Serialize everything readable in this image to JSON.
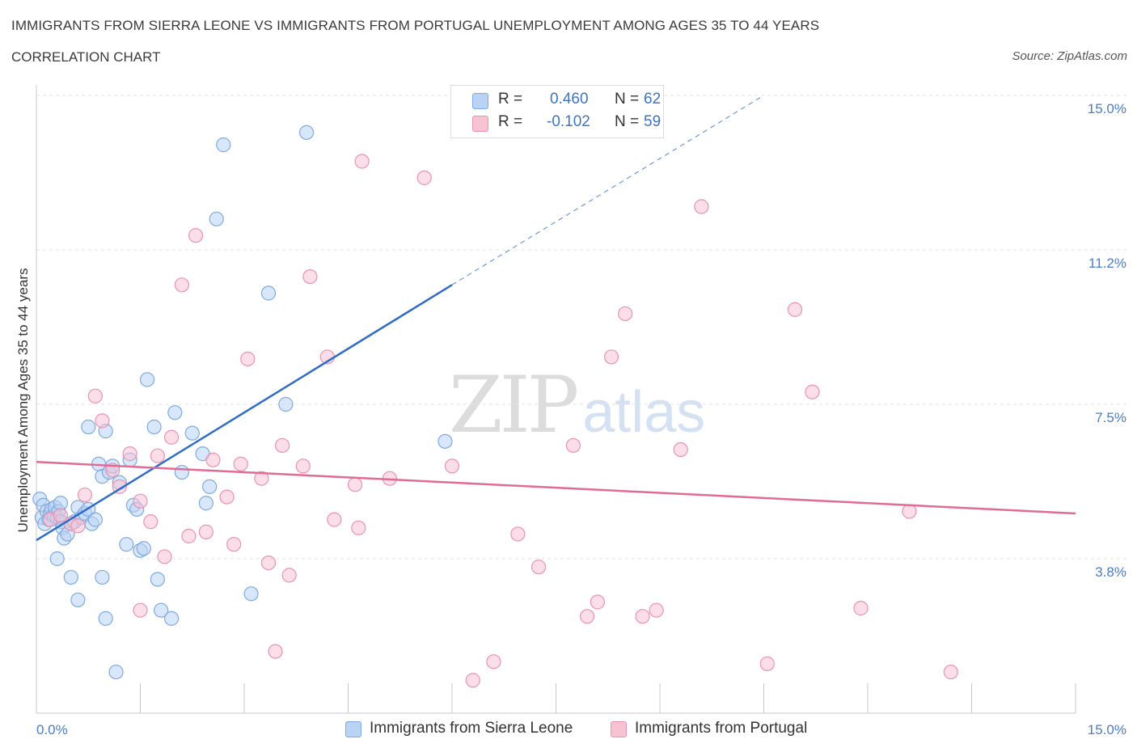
{
  "header": {
    "title": "IMMIGRANTS FROM SIERRA LEONE VS IMMIGRANTS FROM PORTUGAL UNEMPLOYMENT AMONG AGES 35 TO 44 YEARS",
    "subtitle": "CORRELATION CHART",
    "source": "Source: ZipAtlas.com"
  },
  "watermark": {
    "zip": "ZIP",
    "atlas": "atlas"
  },
  "legend": {
    "rows": [
      {
        "r_label": "R =",
        "r_value": "0.460",
        "n_label": "N =",
        "n_value": "62"
      },
      {
        "r_label": "R =",
        "r_value": "-0.102",
        "n_label": "N =",
        "n_value": "59"
      }
    ]
  },
  "colors": {
    "blue_fill": "#b9d3f5",
    "blue_stroke": "#7fa9e0",
    "blue_line": "#2e6cc7",
    "pink_fill": "#f7c3d3",
    "pink_stroke": "#e993b0",
    "pink_line": "#e06b96",
    "grid": "#e3e3e3",
    "tick_label": "#4a7cc9"
  },
  "chart_data": {
    "type": "scatter",
    "title": "IMMIGRANTS FROM SIERRA LEONE VS IMMIGRANTS FROM PORTUGAL UNEMPLOYMENT AMONG AGES 35 TO 44 YEARS",
    "subtitle": "CORRELATION CHART",
    "xlabel": "",
    "ylabel": "Unemployment Among Ages 35 to 44 years",
    "xlim": [
      0,
      15
    ],
    "ylim": [
      0,
      15
    ],
    "x_tick_labels": [
      "0.0%",
      "15.0%"
    ],
    "y_ticks": [
      3.75,
      7.5,
      11.25,
      15.0
    ],
    "y_tick_labels": [
      "3.8%",
      "7.5%",
      "11.2%",
      "15.0%"
    ],
    "legend_position": "top-center",
    "series": [
      {
        "name": "Immigrants from Sierra Leone",
        "R": 0.46,
        "N": 62,
        "trend": {
          "x0": 0.0,
          "y0": 4.2,
          "x1": 6.0,
          "y1": 10.4,
          "dashed_to_x": 10.5,
          "dashed_to_y": 15.0
        },
        "points": [
          [
            0.05,
            5.2
          ],
          [
            0.08,
            4.75
          ],
          [
            0.1,
            5.05
          ],
          [
            0.12,
            4.6
          ],
          [
            0.15,
            4.9
          ],
          [
            0.18,
            4.7
          ],
          [
            0.2,
            4.85
          ],
          [
            0.22,
            4.95
          ],
          [
            0.25,
            4.8
          ],
          [
            0.27,
            5.0
          ],
          [
            0.3,
            4.75
          ],
          [
            0.32,
            4.9
          ],
          [
            0.35,
            4.65
          ],
          [
            0.38,
            4.5
          ],
          [
            0.4,
            4.25
          ],
          [
            0.45,
            4.35
          ],
          [
            0.5,
            4.6
          ],
          [
            0.55,
            4.65
          ],
          [
            0.6,
            5.0
          ],
          [
            0.65,
            4.75
          ],
          [
            0.7,
            4.85
          ],
          [
            0.75,
            4.95
          ],
          [
            0.8,
            4.6
          ],
          [
            0.85,
            4.7
          ],
          [
            0.3,
            3.75
          ],
          [
            0.5,
            3.3
          ],
          [
            0.6,
            2.75
          ],
          [
            0.35,
            5.1
          ],
          [
            0.75,
            6.95
          ],
          [
            0.9,
            6.05
          ],
          [
            0.95,
            5.75
          ],
          [
            1.0,
            6.85
          ],
          [
            1.05,
            5.85
          ],
          [
            1.1,
            6.0
          ],
          [
            1.2,
            5.6
          ],
          [
            1.3,
            4.1
          ],
          [
            1.35,
            6.15
          ],
          [
            1.4,
            5.05
          ],
          [
            1.45,
            4.95
          ],
          [
            1.5,
            3.95
          ],
          [
            1.55,
            4.0
          ],
          [
            1.6,
            8.1
          ],
          [
            1.7,
            6.95
          ],
          [
            1.75,
            3.25
          ],
          [
            1.8,
            2.5
          ],
          [
            1.95,
            2.3
          ],
          [
            2.0,
            7.3
          ],
          [
            2.1,
            5.85
          ],
          [
            2.25,
            6.8
          ],
          [
            2.4,
            6.3
          ],
          [
            2.45,
            5.1
          ],
          [
            2.5,
            5.5
          ],
          [
            2.6,
            12.0
          ],
          [
            2.7,
            13.8
          ],
          [
            3.1,
            2.9
          ],
          [
            3.35,
            10.2
          ],
          [
            3.6,
            7.5
          ],
          [
            3.9,
            14.1
          ],
          [
            5.9,
            6.6
          ],
          [
            1.15,
            1.0
          ],
          [
            0.95,
            3.3
          ],
          [
            1.0,
            2.3
          ]
        ]
      },
      {
        "name": "Immigrants from Portugal",
        "R": -0.102,
        "N": 59,
        "trend": {
          "x0": 0.0,
          "y0": 6.1,
          "x1": 15.0,
          "y1": 4.85
        },
        "points": [
          [
            0.2,
            4.7
          ],
          [
            0.35,
            4.8
          ],
          [
            0.5,
            4.6
          ],
          [
            0.7,
            5.3
          ],
          [
            0.85,
            7.7
          ],
          [
            0.95,
            7.1
          ],
          [
            1.1,
            5.9
          ],
          [
            1.2,
            5.5
          ],
          [
            1.35,
            6.3
          ],
          [
            1.5,
            5.15
          ],
          [
            1.65,
            4.65
          ],
          [
            1.75,
            6.25
          ],
          [
            1.85,
            3.8
          ],
          [
            1.95,
            6.7
          ],
          [
            2.1,
            10.4
          ],
          [
            2.2,
            4.3
          ],
          [
            2.3,
            11.6
          ],
          [
            2.45,
            4.4
          ],
          [
            2.55,
            6.15
          ],
          [
            2.75,
            5.25
          ],
          [
            2.85,
            4.1
          ],
          [
            2.95,
            6.05
          ],
          [
            3.05,
            8.6
          ],
          [
            3.25,
            5.7
          ],
          [
            3.35,
            3.65
          ],
          [
            3.45,
            1.5
          ],
          [
            3.55,
            6.5
          ],
          [
            3.65,
            3.35
          ],
          [
            3.85,
            6.0
          ],
          [
            3.95,
            10.6
          ],
          [
            4.2,
            8.65
          ],
          [
            4.3,
            4.7
          ],
          [
            4.6,
            5.55
          ],
          [
            4.65,
            4.5
          ],
          [
            4.7,
            13.4
          ],
          [
            5.1,
            5.7
          ],
          [
            5.6,
            13.0
          ],
          [
            6.0,
            6.0
          ],
          [
            6.3,
            0.8
          ],
          [
            6.6,
            1.25
          ],
          [
            6.95,
            4.35
          ],
          [
            7.25,
            3.55
          ],
          [
            7.75,
            6.5
          ],
          [
            7.95,
            2.35
          ],
          [
            8.1,
            2.7
          ],
          [
            8.3,
            8.65
          ],
          [
            8.5,
            9.7
          ],
          [
            8.75,
            2.35
          ],
          [
            8.95,
            2.5
          ],
          [
            9.3,
            6.4
          ],
          [
            9.6,
            12.3
          ],
          [
            10.55,
            1.2
          ],
          [
            10.95,
            9.8
          ],
          [
            11.2,
            7.8
          ],
          [
            11.9,
            2.55
          ],
          [
            12.6,
            4.9
          ],
          [
            13.2,
            1.0
          ],
          [
            1.5,
            2.5
          ],
          [
            0.6,
            4.55
          ]
        ]
      }
    ]
  }
}
